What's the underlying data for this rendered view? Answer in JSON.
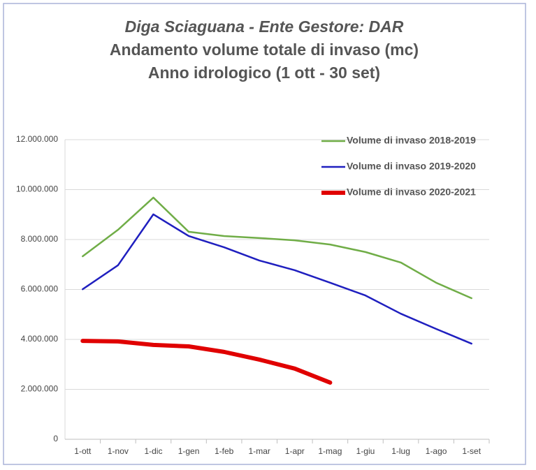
{
  "chart_data": {
    "type": "line",
    "title_lines": [
      "Diga Sciaguana - Ente Gestore: DAR",
      "Andamento volume totale di invaso (mc)",
      "Anno idrologico (1 ott - 30 set)"
    ],
    "categories": [
      "1-ott",
      "1-nov",
      "1-dic",
      "1-gen",
      "1-feb",
      "1-mar",
      "1-apr",
      "1-mag",
      "1-giu",
      "1-lug",
      "1-ago",
      "1-set"
    ],
    "series": [
      {
        "name": "Volume di invaso 2018-2019",
        "color": "#70ad47",
        "width": 2.5,
        "values": [
          7330000,
          8390000,
          9680000,
          8310000,
          8140000,
          8060000,
          7970000,
          7800000,
          7500000,
          7080000,
          6270000,
          5650000
        ]
      },
      {
        "name": "Volume di invaso 2019-2020",
        "color": "#1f1fbf",
        "width": 2.5,
        "values": [
          6010000,
          6970000,
          9010000,
          8140000,
          7690000,
          7160000,
          6770000,
          6270000,
          5760000,
          5030000,
          4420000,
          3830000
        ]
      },
      {
        "name": "Volume di invaso 2020-2021",
        "color": "#e00000",
        "width": 6,
        "values": [
          3940000,
          3920000,
          3780000,
          3720000,
          3500000,
          3190000,
          2830000,
          2270000,
          null,
          null,
          null,
          null
        ]
      }
    ],
    "ylim": [
      0,
      12000000
    ],
    "yticks": [
      0,
      {
        "value": 2000000,
        "label": "2.000.000"
      },
      {
        "value": 4000000,
        "label": "4.000.000"
      },
      {
        "value": 6000000,
        "label": "6.000.000"
      },
      {
        "value": 8000000,
        "label": "8.000.000"
      },
      {
        "value": 10000000,
        "label": "10.000.000"
      },
      {
        "value": 12000000,
        "label": "12.000.000"
      }
    ],
    "grid": true,
    "legend": "top-right"
  }
}
